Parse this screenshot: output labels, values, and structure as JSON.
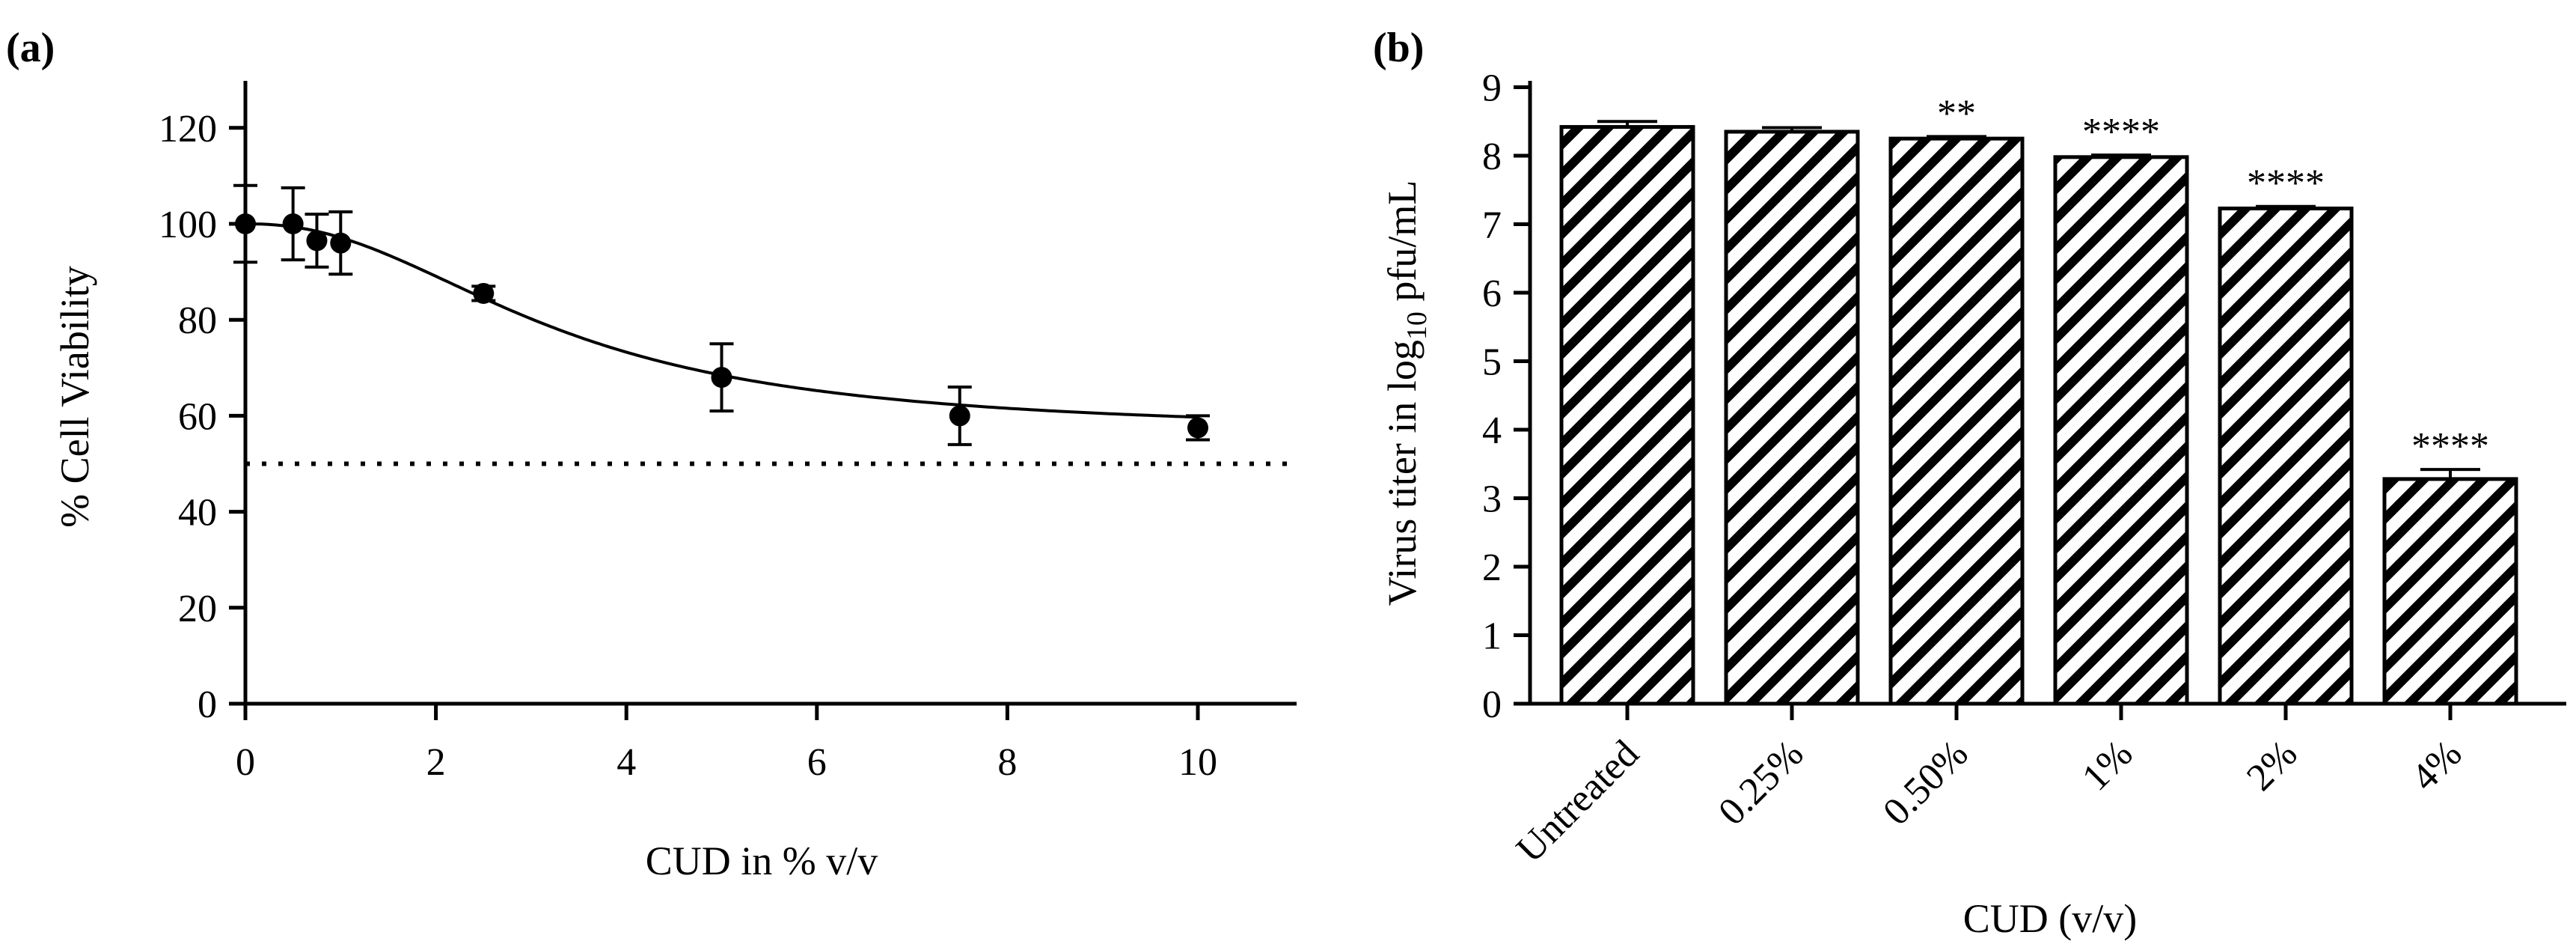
{
  "chart_data": [
    {
      "panel_label": "(a)",
      "type": "scatter",
      "title": "",
      "xlabel": "CUD in % v/v",
      "ylabel": "% Cell Viability",
      "xlim": [
        0,
        11
      ],
      "ylim": [
        0,
        130
      ],
      "xticks": [
        "0",
        "2",
        "4",
        "6",
        "8",
        "10"
      ],
      "yticks": [
        "0",
        "20",
        "40",
        "60",
        "80",
        "100",
        "120"
      ],
      "reference_line": {
        "y": 50,
        "style": "dotted"
      },
      "fit": "sigmoidal dose-response curve",
      "series": [
        {
          "name": "Cell viability",
          "x": [
            0,
            0.5,
            0.75,
            1,
            2.5,
            5,
            7.5,
            10
          ],
          "y": [
            100,
            100,
            96.5,
            96,
            85.5,
            68,
            60,
            57.5
          ],
          "error": [
            8,
            7.5,
            5.5,
            6.5,
            1.5,
            7,
            6,
            2.5
          ]
        }
      ]
    },
    {
      "panel_label": "(b)",
      "type": "bar",
      "title": "",
      "xlabel": "CUD (v/v)",
      "ylabel_prefix": "Virus titer in log",
      "ylabel_sub": "10",
      "ylabel_suffix": " pfu/mL",
      "ylim": [
        0,
        9
      ],
      "yticks": [
        "0",
        "1",
        "2",
        "3",
        "4",
        "5",
        "6",
        "7",
        "8",
        "9"
      ],
      "categories": [
        "Untreated",
        "0.25%",
        "0.50%",
        "1%",
        "2%",
        "4%"
      ],
      "values": [
        8.42,
        8.35,
        8.25,
        7.98,
        7.23,
        3.28
      ],
      "error": [
        0.08,
        0.06,
        0.03,
        0.03,
        0.03,
        0.14
      ],
      "significance": [
        "",
        "",
        "**",
        "****",
        "****",
        "****"
      ],
      "fill": "diagonal hatch"
    }
  ]
}
